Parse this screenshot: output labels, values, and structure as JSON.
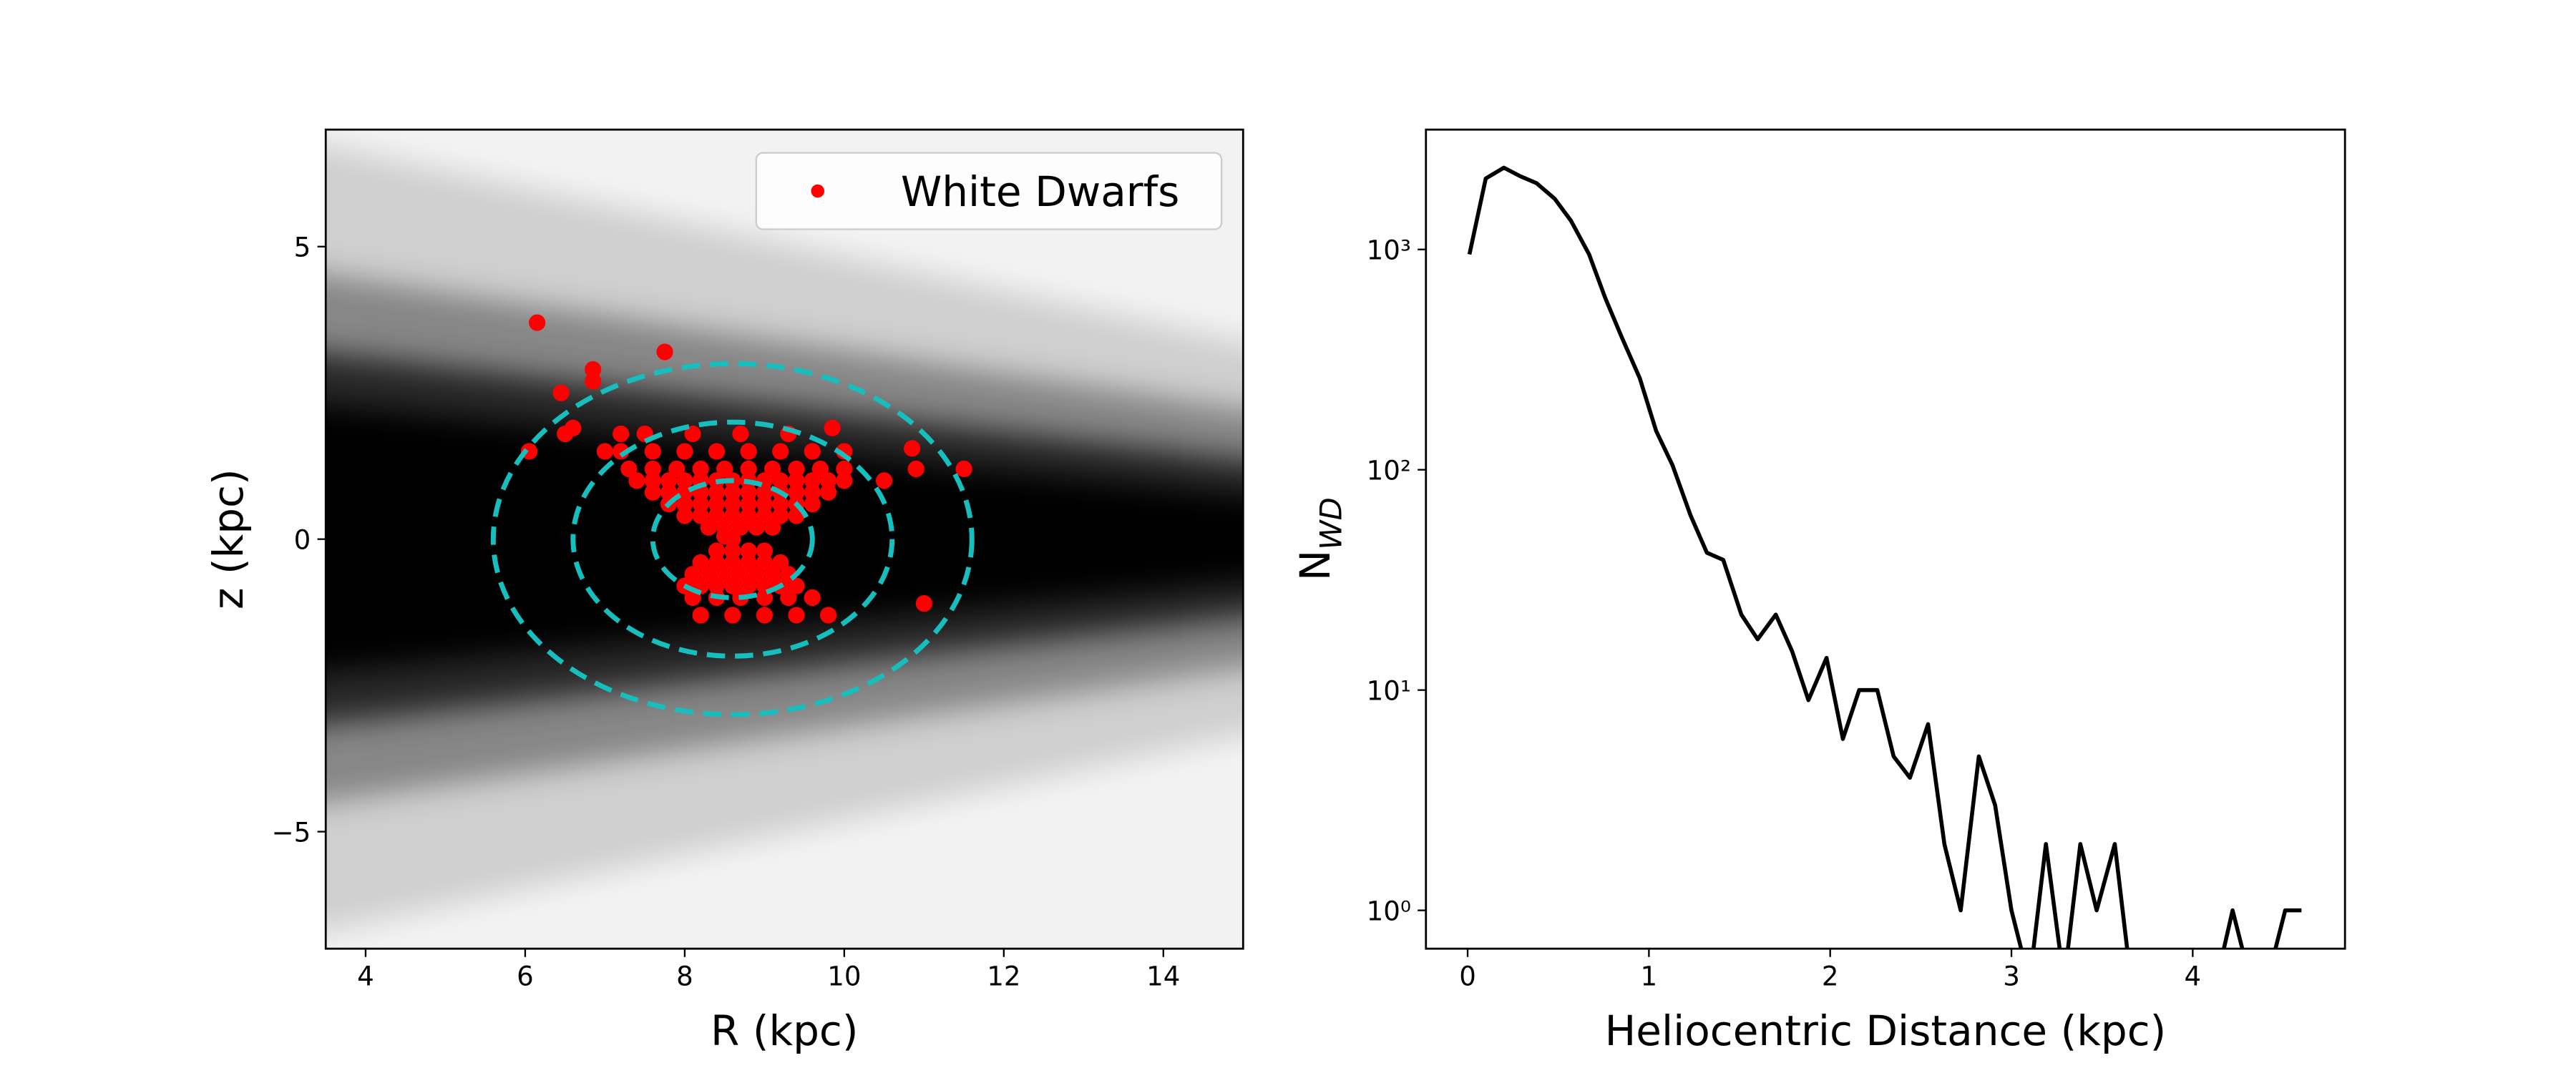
{
  "chart_data": [
    {
      "type": "scatter",
      "xlabel": "R (kpc)",
      "ylabel": "z (kpc)",
      "xlim": [
        3.5,
        15
      ],
      "ylim": [
        -7,
        7
      ],
      "xticks": [
        4,
        6,
        8,
        10,
        12,
        14
      ],
      "yticks": [
        {
          "value": -5,
          "label": "−5"
        },
        0,
        5
      ],
      "legend": "upper right",
      "circles": {
        "center": [
          8.6,
          0
        ],
        "radii": [
          1,
          2,
          3
        ],
        "color": "#17bebe"
      },
      "series": [
        {
          "name": "White Dwarfs",
          "color": "#ff0000",
          "x": [
            6.15,
            7.75,
            6.85,
            6.85,
            6.05,
            6.45,
            9.85,
            10.9,
            11.5,
            11.0,
            10.85,
            10.5,
            6.6,
            6.5,
            7.0,
            7.2,
            8.6,
            8.5,
            8.3,
            8.5,
            8.7,
            8.9,
            9.1,
            8.0,
            8.2,
            8.4,
            8.6,
            8.8,
            9.0,
            9.2,
            9.4,
            7.8,
            8.0,
            8.2,
            8.4,
            8.6,
            8.8,
            9.0,
            9.2,
            9.4,
            9.6,
            7.6,
            7.8,
            8.0,
            8.2,
            8.4,
            8.6,
            8.8,
            9.0,
            9.2,
            9.4,
            9.6,
            9.8,
            7.4,
            7.6,
            7.8,
            8.0,
            8.2,
            8.4,
            8.6,
            8.8,
            9.0,
            9.2,
            9.4,
            9.6,
            9.8,
            10.0,
            7.3,
            7.6,
            7.9,
            8.2,
            8.5,
            8.8,
            9.1,
            9.4,
            9.7,
            10.0,
            7.2,
            7.6,
            8.0,
            8.4,
            8.8,
            9.2,
            9.6,
            10.0,
            7.5,
            8.1,
            8.7,
            9.3,
            8.4,
            8.6,
            8.8,
            9.0,
            8.2,
            8.4,
            8.6,
            8.8,
            9.0,
            9.2,
            8.1,
            8.3,
            8.5,
            8.7,
            8.9,
            9.1,
            9.3,
            8.0,
            8.2,
            8.4,
            8.6,
            8.8,
            9.0,
            9.2,
            9.4,
            8.1,
            8.4,
            8.7,
            9.0,
            9.3,
            9.6,
            8.2,
            8.6,
            9.0,
            9.4,
            9.8
          ],
          "y": [
            3.7,
            3.2,
            2.9,
            2.7,
            1.5,
            2.5,
            1.9,
            1.2,
            1.2,
            -1.1,
            1.55,
            1.0,
            1.9,
            1.8,
            1.5,
            1.8,
            0,
            0.05,
            0.2,
            0.2,
            0.2,
            0.2,
            0.2,
            0.4,
            0.4,
            0.4,
            0.4,
            0.4,
            0.4,
            0.4,
            0.4,
            0.6,
            0.6,
            0.6,
            0.6,
            0.6,
            0.6,
            0.6,
            0.6,
            0.6,
            0.6,
            0.8,
            0.8,
            0.8,
            0.8,
            0.8,
            0.8,
            0.8,
            0.8,
            0.8,
            0.8,
            0.8,
            0.8,
            1.0,
            1.0,
            1.0,
            1.0,
            1.0,
            1.0,
            1.0,
            1.0,
            1.0,
            1.0,
            1.0,
            1.0,
            1.0,
            1.0,
            1.2,
            1.2,
            1.2,
            1.2,
            1.2,
            1.2,
            1.2,
            1.2,
            1.2,
            1.2,
            1.5,
            1.5,
            1.5,
            1.5,
            1.5,
            1.5,
            1.5,
            1.5,
            1.8,
            1.8,
            1.8,
            1.8,
            -0.2,
            -0.2,
            -0.2,
            -0.2,
            -0.4,
            -0.4,
            -0.4,
            -0.4,
            -0.4,
            -0.4,
            -0.6,
            -0.6,
            -0.6,
            -0.6,
            -0.6,
            -0.6,
            -0.6,
            -0.8,
            -0.8,
            -0.8,
            -0.8,
            -0.8,
            -0.8,
            -0.8,
            -0.8,
            -1.0,
            -1.0,
            -1.0,
            -1.0,
            -1.0,
            -1.0,
            -1.3,
            -1.3,
            -1.3,
            -1.3,
            -1.3
          ]
        }
      ]
    },
    {
      "type": "line",
      "xlabel": "Heliocentric Distance (kpc)",
      "ylabel": "N",
      "ylabel_sub": "WD",
      "yscale": "log",
      "xlim": [
        -0.23,
        4.84
      ],
      "ylim": [
        0.67,
        3500
      ],
      "xticks": [
        0,
        1,
        2,
        3,
        4
      ],
      "yticks": [
        {
          "value": 1,
          "label": "10⁰"
        },
        {
          "value": 10,
          "label": "10¹"
        },
        {
          "value": 100,
          "label": "10²"
        },
        {
          "value": 1000,
          "label": "10³"
        }
      ],
      "series": [
        {
          "color": "#000000",
          "x": [
            0.01,
            0.1,
            0.2,
            0.29,
            0.38,
            0.48,
            0.57,
            0.67,
            0.76,
            0.85,
            0.95,
            1.04,
            1.13,
            1.23,
            1.32,
            1.41,
            1.51,
            1.6,
            1.7,
            1.79,
            1.88,
            1.98,
            2.07,
            2.16,
            2.26,
            2.35,
            2.44,
            2.54,
            2.63,
            2.72,
            2.82,
            2.91,
            3.0,
            3.1,
            3.19,
            3.29,
            3.38,
            3.47,
            3.57,
            3.66,
            3.75,
            3.85,
            3.94,
            4.03,
            4.13,
            4.22,
            4.32,
            4.41,
            4.51,
            4.6
          ],
          "values": [
            950,
            2100,
            2350,
            2150,
            2000,
            1700,
            1350,
            950,
            600,
            400,
            260,
            150,
            105,
            62,
            42,
            39,
            22,
            17,
            22,
            15,
            9,
            14,
            6,
            10,
            10,
            5,
            4,
            7,
            2,
            1,
            5,
            3,
            1,
            0,
            2,
            0,
            2,
            1,
            2,
            0,
            0,
            0,
            0,
            0,
            0,
            1,
            0,
            0,
            1,
            1
          ]
        }
      ]
    }
  ]
}
